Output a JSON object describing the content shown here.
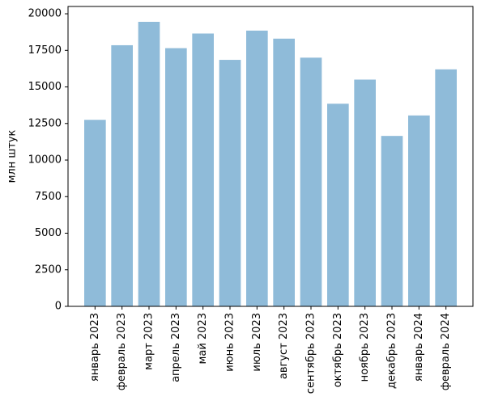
{
  "chart_data": {
    "type": "bar",
    "categories": [
      "январь 2023",
      "февраль 2023",
      "март 2023",
      "апрель 2023",
      "май 2023",
      "июнь 2023",
      "июль 2023",
      "август 2023",
      "сентябрь 2023",
      "октябрь 2023",
      "ноябрь 2023",
      "декабрь 2023",
      "январь 2024",
      "февраль 2024"
    ],
    "values": [
      12750,
      17850,
      19450,
      17650,
      18650,
      16850,
      18850,
      18300,
      17000,
      13850,
      15500,
      11650,
      13050,
      16200
    ],
    "title": "",
    "xlabel": "",
    "ylabel": "млн штук",
    "ylim": [
      0,
      20500
    ],
    "yticks": [
      0,
      2500,
      5000,
      7500,
      10000,
      12500,
      15000,
      17500,
      20000
    ],
    "ytick_labels": [
      "0",
      "2500",
      "5000",
      "7500",
      "10000",
      "12500",
      "15000",
      "17500",
      "20000"
    ],
    "grid": false,
    "colors": {
      "bar": "#8fbbd9",
      "axis": "#000000"
    }
  }
}
